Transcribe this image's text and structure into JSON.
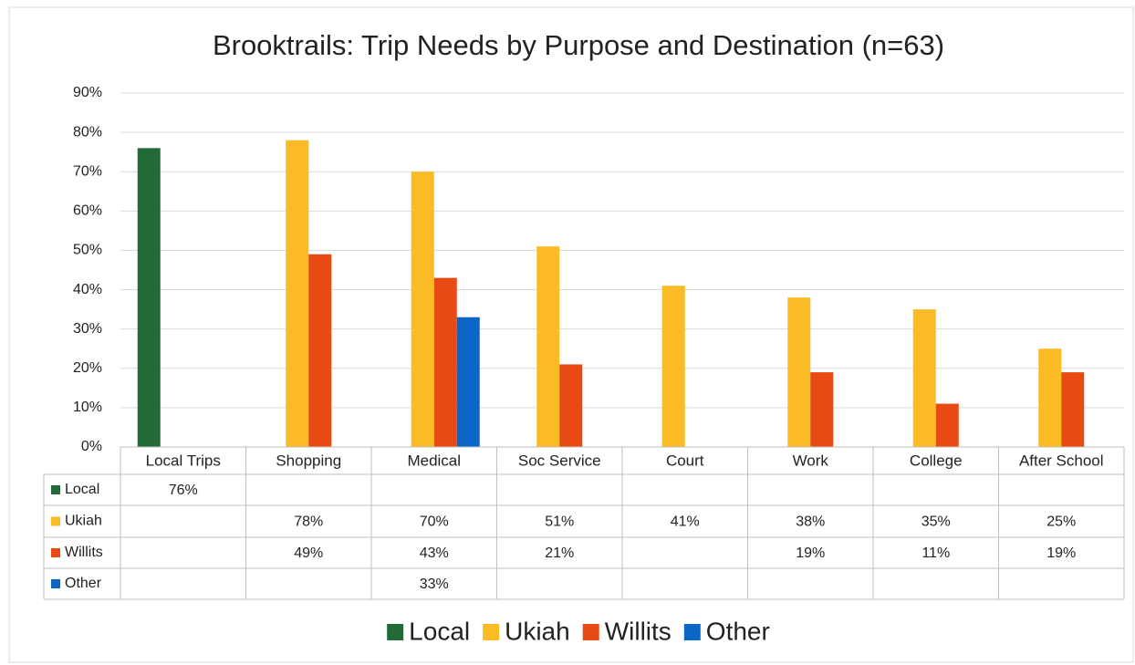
{
  "chart_data": {
    "type": "bar",
    "title": "Brooktrails: Trip Needs by Purpose and Destination (n=63)",
    "categories": [
      "Local Trips",
      "Shopping",
      "Medical",
      "Soc Service",
      "Court",
      "Work",
      "College",
      "After School"
    ],
    "series": [
      {
        "name": "Local",
        "color": "#236b36",
        "values": [
          76,
          null,
          null,
          null,
          null,
          null,
          null,
          null
        ],
        "value_labels": [
          "76%",
          null,
          null,
          null,
          null,
          null,
          null,
          null
        ]
      },
      {
        "name": "Ukiah",
        "color": "#fbbb24",
        "values": [
          null,
          78,
          70,
          51,
          41,
          38,
          35,
          25
        ],
        "value_labels": [
          null,
          "78%",
          "70%",
          "51%",
          "41%",
          "38%",
          "35%",
          "25%"
        ]
      },
      {
        "name": "Willits",
        "color": "#e84a13",
        "values": [
          null,
          49,
          43,
          21,
          null,
          19,
          11,
          19
        ],
        "value_labels": [
          null,
          "49%",
          "43%",
          "21%",
          null,
          "19%",
          "11%",
          "19%"
        ]
      },
      {
        "name": "Other",
        "color": "#0b66c6",
        "values": [
          null,
          null,
          33,
          null,
          null,
          null,
          null,
          null
        ],
        "value_labels": [
          null,
          null,
          "33%",
          null,
          null,
          null,
          null,
          null
        ]
      }
    ],
    "ylim": [
      0,
      90
    ],
    "yticks": [
      {
        "value": 0,
        "label": "0%"
      },
      {
        "value": 10,
        "label": "10%"
      },
      {
        "value": 20,
        "label": "20%"
      },
      {
        "value": 30,
        "label": "30%"
      },
      {
        "value": 40,
        "label": "40%"
      },
      {
        "value": 50,
        "label": "50%"
      },
      {
        "value": 60,
        "label": "60%"
      },
      {
        "value": 70,
        "label": "70%"
      },
      {
        "value": 80,
        "label": "80%"
      },
      {
        "value": 90,
        "label": "90%"
      }
    ],
    "grid": true,
    "legend": "bottom"
  }
}
